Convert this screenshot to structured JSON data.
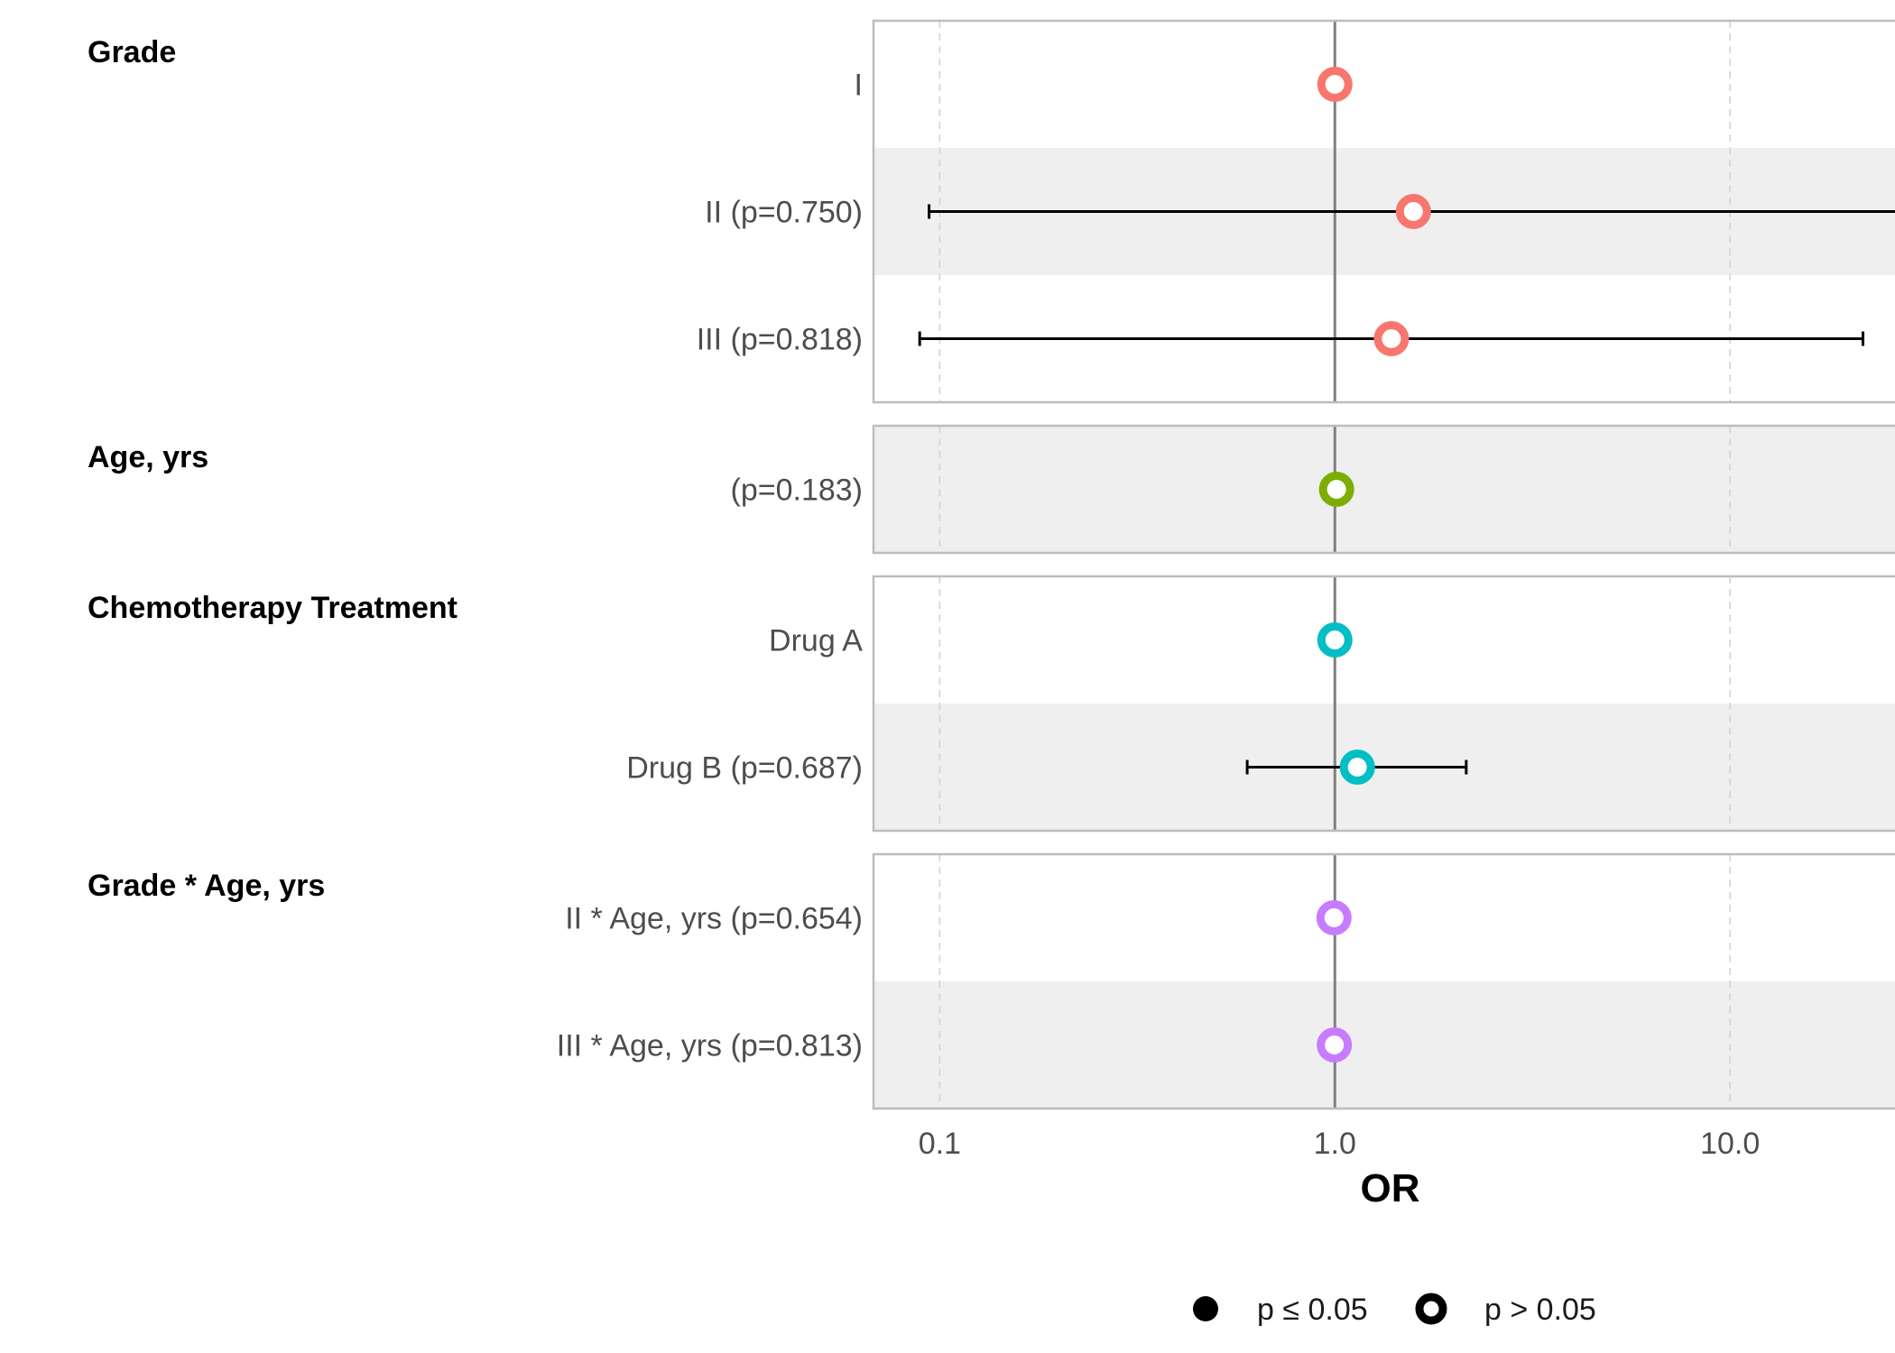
{
  "chart_data": {
    "type": "forest",
    "xlabel": "OR",
    "x_scale": "log10",
    "xlim": [
      0.068,
      28
    ],
    "x_ticks": [
      {
        "value": 0.1,
        "label": "0.1"
      },
      {
        "value": 1.0,
        "label": "1.0"
      },
      {
        "value": 10.0,
        "label": "10.0"
      }
    ],
    "reference_line": 1.0,
    "groups": [
      {
        "name": "Grade",
        "color": "#F8766D",
        "rows": [
          {
            "label": "I",
            "estimate": 1.0,
            "lower": null,
            "upper": null,
            "significant": false
          },
          {
            "label": "II (p=0.750)",
            "estimate": 1.58,
            "lower": 0.094,
            "upper": 26.5,
            "significant": false
          },
          {
            "label": "III (p=0.818)",
            "estimate": 1.39,
            "lower": 0.089,
            "upper": 21.7,
            "significant": false
          }
        ]
      },
      {
        "name": "Age, yrs",
        "color": "#7CAE00",
        "rows": [
          {
            "label": "(p=0.183)",
            "estimate": 1.01,
            "lower": null,
            "upper": null,
            "significant": false
          }
        ]
      },
      {
        "name": "Chemotherapy Treatment",
        "color": "#00BFC4",
        "rows": [
          {
            "label": "Drug A",
            "estimate": 1.0,
            "lower": null,
            "upper": null,
            "significant": false
          },
          {
            "label": "Drug B (p=0.687)",
            "estimate": 1.14,
            "lower": 0.6,
            "upper": 2.15,
            "significant": false
          }
        ]
      },
      {
        "name": "Grade * Age, yrs",
        "color": "#C77CFF",
        "rows": [
          {
            "label": "II * Age, yrs (p=0.654)",
            "estimate": 0.995,
            "lower": null,
            "upper": null,
            "significant": false
          },
          {
            "label": "III * Age, yrs (p=0.813)",
            "estimate": 0.997,
            "lower": null,
            "upper": null,
            "significant": false
          }
        ]
      }
    ],
    "legend": {
      "placement": "bottom",
      "items": [
        {
          "label": "p ≤ 0.05",
          "marker": "filled-circle"
        },
        {
          "label": "p > 0.05",
          "marker": "open-circle"
        }
      ]
    },
    "grid": {
      "major_x": true,
      "style": "dashed"
    }
  }
}
